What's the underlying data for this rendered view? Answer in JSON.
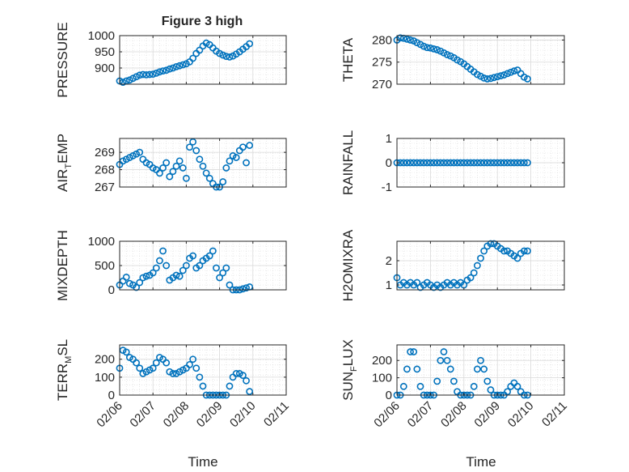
{
  "figure": {
    "title": "Figure 3 high",
    "xlabel": "Time"
  },
  "styles": {
    "marker_color": "#0072BD",
    "axis_color": "#262626",
    "grid_color": "#d9d9d9"
  },
  "chart_data": [
    {
      "id": "pressure",
      "type": "scatter",
      "ylabel": "PRESSURE",
      "ylim": [
        850,
        1000
      ],
      "yticks": [
        900,
        950,
        1000
      ],
      "xlim": [
        0,
        5
      ],
      "xticks": [
        "02/06",
        "02/07",
        "02/08",
        "02/09",
        "02/10",
        "02/11"
      ],
      "show_xticklabels": false,
      "grid": true,
      "points": [
        [
          0,
          860
        ],
        [
          0.1,
          856
        ],
        [
          0.2,
          860
        ],
        [
          0.3,
          863
        ],
        [
          0.4,
          868
        ],
        [
          0.5,
          873
        ],
        [
          0.6,
          878
        ],
        [
          0.7,
          880
        ],
        [
          0.8,
          879
        ],
        [
          0.9,
          880
        ],
        [
          1.0,
          881
        ],
        [
          1.1,
          884
        ],
        [
          1.2,
          888
        ],
        [
          1.3,
          891
        ],
        [
          1.4,
          893
        ],
        [
          1.5,
          897
        ],
        [
          1.6,
          900
        ],
        [
          1.7,
          904
        ],
        [
          1.8,
          907
        ],
        [
          1.9,
          910
        ],
        [
          2.0,
          913
        ],
        [
          2.1,
          919
        ],
        [
          2.2,
          930
        ],
        [
          2.3,
          945
        ],
        [
          2.4,
          955
        ],
        [
          2.5,
          968
        ],
        [
          2.6,
          977
        ],
        [
          2.7,
          972
        ],
        [
          2.8,
          962
        ],
        [
          2.9,
          952
        ],
        [
          3.0,
          945
        ],
        [
          3.1,
          940
        ],
        [
          3.2,
          936
        ],
        [
          3.3,
          934
        ],
        [
          3.4,
          937
        ],
        [
          3.5,
          943
        ],
        [
          3.6,
          950
        ],
        [
          3.7,
          958
        ],
        [
          3.8,
          966
        ],
        [
          3.9,
          975
        ]
      ]
    },
    {
      "id": "theta",
      "type": "scatter",
      "ylabel": "THETA",
      "ylim": [
        270,
        281
      ],
      "yticks": [
        270,
        275,
        280
      ],
      "xlim": [
        0,
        5
      ],
      "xticks": [
        "02/06",
        "02/07",
        "02/08",
        "02/09",
        "02/10",
        "02/11"
      ],
      "show_xticklabels": false,
      "grid": true,
      "points": [
        [
          0,
          280
        ],
        [
          0.1,
          280.5
        ],
        [
          0.2,
          280.4
        ],
        [
          0.3,
          280.2
        ],
        [
          0.4,
          280
        ],
        [
          0.5,
          279.8
        ],
        [
          0.6,
          279.4
        ],
        [
          0.7,
          279
        ],
        [
          0.8,
          278.6
        ],
        [
          0.9,
          278.3
        ],
        [
          1.0,
          278.2
        ],
        [
          1.1,
          278
        ],
        [
          1.2,
          277.8
        ],
        [
          1.3,
          277.5
        ],
        [
          1.4,
          277.1
        ],
        [
          1.5,
          276.7
        ],
        [
          1.6,
          276.4
        ],
        [
          1.7,
          276
        ],
        [
          1.8,
          275.5
        ],
        [
          1.9,
          275.1
        ],
        [
          2.0,
          274.6
        ],
        [
          2.1,
          274
        ],
        [
          2.2,
          273.4
        ],
        [
          2.3,
          272.8
        ],
        [
          2.4,
          272.2
        ],
        [
          2.5,
          271.8
        ],
        [
          2.6,
          271.4
        ],
        [
          2.7,
          271.2
        ],
        [
          2.8,
          271.3
        ],
        [
          2.9,
          271.5
        ],
        [
          3.0,
          271.7
        ],
        [
          3.1,
          271.9
        ],
        [
          3.2,
          272.1
        ],
        [
          3.3,
          272.4
        ],
        [
          3.4,
          272.7
        ],
        [
          3.5,
          273
        ],
        [
          3.6,
          273.2
        ],
        [
          3.7,
          272.4
        ],
        [
          3.8,
          271.6
        ],
        [
          3.9,
          271.2
        ]
      ]
    },
    {
      "id": "air_temp",
      "type": "scatter",
      "ylabel": "AIR",
      "ylabel_sub": "T",
      "ylabel_after": "EMP",
      "ylim": [
        267,
        269.8
      ],
      "yticks": [
        267,
        268,
        269
      ],
      "xlim": [
        0,
        5
      ],
      "xticks": [
        "02/06",
        "02/07",
        "02/08",
        "02/09",
        "02/10",
        "02/11"
      ],
      "show_xticklabels": false,
      "grid": true,
      "points": [
        [
          0,
          268.3
        ],
        [
          0.1,
          268.5
        ],
        [
          0.2,
          268.6
        ],
        [
          0.3,
          268.7
        ],
        [
          0.4,
          268.8
        ],
        [
          0.5,
          268.9
        ],
        [
          0.6,
          269.0
        ],
        [
          0.7,
          268.6
        ],
        [
          0.8,
          268.4
        ],
        [
          0.9,
          268.3
        ],
        [
          1.0,
          268.1
        ],
        [
          1.1,
          268.0
        ],
        [
          1.2,
          267.8
        ],
        [
          1.3,
          268.1
        ],
        [
          1.4,
          268.4
        ],
        [
          1.5,
          267.6
        ],
        [
          1.6,
          267.9
        ],
        [
          1.7,
          268.2
        ],
        [
          1.8,
          268.5
        ],
        [
          1.9,
          268.1
        ],
        [
          2.0,
          267.5
        ],
        [
          2.1,
          269.3
        ],
        [
          2.2,
          269.6
        ],
        [
          2.3,
          269.1
        ],
        [
          2.4,
          268.6
        ],
        [
          2.5,
          268.2
        ],
        [
          2.6,
          267.8
        ],
        [
          2.7,
          267.5
        ],
        [
          2.8,
          267.2
        ],
        [
          2.9,
          267.0
        ],
        [
          3.0,
          267.0
        ],
        [
          3.1,
          267.3
        ],
        [
          3.2,
          268.1
        ],
        [
          3.3,
          268.5
        ],
        [
          3.4,
          268.8
        ],
        [
          3.5,
          268.7
        ],
        [
          3.6,
          269.1
        ],
        [
          3.7,
          269.3
        ],
        [
          3.8,
          268.4
        ],
        [
          3.9,
          269.4
        ]
      ]
    },
    {
      "id": "rainfall",
      "type": "scatter",
      "ylabel": "RAINFALL",
      "ylim": [
        -1,
        1
      ],
      "yticks": [
        -1,
        0,
        1
      ],
      "xlim": [
        0,
        5
      ],
      "xticks": [
        "02/06",
        "02/07",
        "02/08",
        "02/09",
        "02/10",
        "02/11"
      ],
      "show_xticklabels": false,
      "grid": true,
      "points": [
        [
          0,
          0
        ],
        [
          0.1,
          0
        ],
        [
          0.2,
          0
        ],
        [
          0.3,
          0
        ],
        [
          0.4,
          0
        ],
        [
          0.5,
          0
        ],
        [
          0.6,
          0
        ],
        [
          0.7,
          0
        ],
        [
          0.8,
          0
        ],
        [
          0.9,
          0
        ],
        [
          1.0,
          0
        ],
        [
          1.1,
          0
        ],
        [
          1.2,
          0
        ],
        [
          1.3,
          0
        ],
        [
          1.4,
          0
        ],
        [
          1.5,
          0
        ],
        [
          1.6,
          0
        ],
        [
          1.7,
          0
        ],
        [
          1.8,
          0
        ],
        [
          1.9,
          0
        ],
        [
          2.0,
          0
        ],
        [
          2.1,
          0
        ],
        [
          2.2,
          0
        ],
        [
          2.3,
          0
        ],
        [
          2.4,
          0
        ],
        [
          2.5,
          0
        ],
        [
          2.6,
          0
        ],
        [
          2.7,
          0
        ],
        [
          2.8,
          0
        ],
        [
          2.9,
          0
        ],
        [
          3.0,
          0
        ],
        [
          3.1,
          0
        ],
        [
          3.2,
          0
        ],
        [
          3.3,
          0
        ],
        [
          3.4,
          0
        ],
        [
          3.5,
          0
        ],
        [
          3.6,
          0
        ],
        [
          3.7,
          0
        ],
        [
          3.8,
          0
        ],
        [
          3.9,
          0
        ]
      ]
    },
    {
      "id": "mixdepth",
      "type": "scatter",
      "ylabel": "MIXDEPTH",
      "ylim": [
        0,
        1000
      ],
      "yticks": [
        0,
        500,
        1000
      ],
      "xlim": [
        0,
        5
      ],
      "xticks": [
        "02/06",
        "02/07",
        "02/08",
        "02/09",
        "02/10",
        "02/11"
      ],
      "show_xticklabels": false,
      "grid": true,
      "points": [
        [
          0,
          100
        ],
        [
          0.1,
          180
        ],
        [
          0.2,
          260
        ],
        [
          0.3,
          130
        ],
        [
          0.4,
          100
        ],
        [
          0.5,
          50
        ],
        [
          0.6,
          150
        ],
        [
          0.7,
          250
        ],
        [
          0.8,
          280
        ],
        [
          0.9,
          300
        ],
        [
          1.0,
          350
        ],
        [
          1.1,
          450
        ],
        [
          1.2,
          600
        ],
        [
          1.3,
          800
        ],
        [
          1.4,
          500
        ],
        [
          1.5,
          200
        ],
        [
          1.6,
          250
        ],
        [
          1.7,
          300
        ],
        [
          1.8,
          280
        ],
        [
          1.9,
          400
        ],
        [
          2.0,
          500
        ],
        [
          2.1,
          650
        ],
        [
          2.2,
          700
        ],
        [
          2.3,
          450
        ],
        [
          2.4,
          500
        ],
        [
          2.5,
          600
        ],
        [
          2.6,
          650
        ],
        [
          2.7,
          700
        ],
        [
          2.8,
          800
        ],
        [
          2.9,
          450
        ],
        [
          3.0,
          250
        ],
        [
          3.1,
          350
        ],
        [
          3.2,
          450
        ],
        [
          3.3,
          100
        ],
        [
          3.4,
          0
        ],
        [
          3.5,
          0
        ],
        [
          3.6,
          0
        ],
        [
          3.7,
          20
        ],
        [
          3.8,
          40
        ],
        [
          3.9,
          60
        ]
      ]
    },
    {
      "id": "h2omixra",
      "type": "scatter",
      "ylabel": "H2OMIXRA",
      "ylim": [
        0.8,
        2.8
      ],
      "yticks": [
        1,
        2
      ],
      "xlim": [
        0,
        5
      ],
      "xticks": [
        "02/06",
        "02/07",
        "02/08",
        "02/09",
        "02/10",
        "02/11"
      ],
      "show_xticklabels": false,
      "grid": true,
      "points": [
        [
          0,
          1.3
        ],
        [
          0.1,
          1.0
        ],
        [
          0.2,
          1.1
        ],
        [
          0.3,
          1.0
        ],
        [
          0.4,
          1.1
        ],
        [
          0.5,
          1.0
        ],
        [
          0.6,
          1.1
        ],
        [
          0.7,
          0.9
        ],
        [
          0.8,
          1.0
        ],
        [
          0.9,
          1.1
        ],
        [
          1.0,
          1.0
        ],
        [
          1.1,
          0.9
        ],
        [
          1.2,
          1.0
        ],
        [
          1.3,
          0.9
        ],
        [
          1.4,
          1.0
        ],
        [
          1.5,
          1.1
        ],
        [
          1.6,
          1.0
        ],
        [
          1.7,
          1.1
        ],
        [
          1.8,
          1.0
        ],
        [
          1.9,
          1.1
        ],
        [
          2.0,
          1.0
        ],
        [
          2.1,
          1.2
        ],
        [
          2.2,
          1.3
        ],
        [
          2.3,
          1.5
        ],
        [
          2.4,
          1.8
        ],
        [
          2.5,
          2.1
        ],
        [
          2.6,
          2.4
        ],
        [
          2.7,
          2.6
        ],
        [
          2.8,
          2.7
        ],
        [
          2.9,
          2.7
        ],
        [
          3.0,
          2.6
        ],
        [
          3.1,
          2.5
        ],
        [
          3.2,
          2.4
        ],
        [
          3.3,
          2.4
        ],
        [
          3.4,
          2.3
        ],
        [
          3.5,
          2.2
        ],
        [
          3.6,
          2.1
        ],
        [
          3.7,
          2.3
        ],
        [
          3.8,
          2.4
        ],
        [
          3.9,
          2.4
        ]
      ]
    },
    {
      "id": "terr_msl",
      "type": "scatter",
      "ylabel": "TERR",
      "ylabel_sub": "M",
      "ylabel_after": "SL",
      "ylim": [
        0,
        280
      ],
      "yticks": [
        0,
        100,
        200
      ],
      "xlim": [
        0,
        5
      ],
      "xticks": [
        "02/06",
        "02/07",
        "02/08",
        "02/09",
        "02/10",
        "02/11"
      ],
      "show_xticklabels": true,
      "grid": true,
      "points": [
        [
          0,
          150
        ],
        [
          0.1,
          250
        ],
        [
          0.2,
          240
        ],
        [
          0.3,
          210
        ],
        [
          0.4,
          200
        ],
        [
          0.5,
          180
        ],
        [
          0.6,
          150
        ],
        [
          0.7,
          120
        ],
        [
          0.8,
          130
        ],
        [
          0.9,
          140
        ],
        [
          1.0,
          150
        ],
        [
          1.1,
          180
        ],
        [
          1.2,
          210
        ],
        [
          1.3,
          200
        ],
        [
          1.4,
          180
        ],
        [
          1.5,
          130
        ],
        [
          1.6,
          120
        ],
        [
          1.7,
          120
        ],
        [
          1.8,
          130
        ],
        [
          1.9,
          140
        ],
        [
          2.0,
          150
        ],
        [
          2.1,
          170
        ],
        [
          2.2,
          200
        ],
        [
          2.3,
          150
        ],
        [
          2.4,
          100
        ],
        [
          2.5,
          50
        ],
        [
          2.6,
          0
        ],
        [
          2.7,
          0
        ],
        [
          2.8,
          0
        ],
        [
          2.9,
          0
        ],
        [
          3.0,
          0
        ],
        [
          3.1,
          0
        ],
        [
          3.2,
          0
        ],
        [
          3.3,
          50
        ],
        [
          3.4,
          100
        ],
        [
          3.5,
          120
        ],
        [
          3.6,
          120
        ],
        [
          3.7,
          110
        ],
        [
          3.8,
          80
        ],
        [
          3.9,
          20
        ]
      ]
    },
    {
      "id": "sun_flux",
      "type": "scatter",
      "ylabel": "SUN",
      "ylabel_sub": "F",
      "ylabel_after": "LUX",
      "ylim": [
        0,
        290
      ],
      "yticks": [
        0,
        100,
        200
      ],
      "xlim": [
        0,
        5
      ],
      "xticks": [
        "02/06",
        "02/07",
        "02/08",
        "02/09",
        "02/10",
        "02/11"
      ],
      "show_xticklabels": true,
      "grid": true,
      "points": [
        [
          0,
          0
        ],
        [
          0.1,
          0
        ],
        [
          0.2,
          50
        ],
        [
          0.3,
          150
        ],
        [
          0.4,
          250
        ],
        [
          0.5,
          250
        ],
        [
          0.6,
          150
        ],
        [
          0.7,
          50
        ],
        [
          0.8,
          0
        ],
        [
          0.9,
          0
        ],
        [
          1.0,
          0
        ],
        [
          1.1,
          0
        ],
        [
          1.2,
          80
        ],
        [
          1.3,
          200
        ],
        [
          1.4,
          250
        ],
        [
          1.5,
          200
        ],
        [
          1.6,
          150
        ],
        [
          1.7,
          80
        ],
        [
          1.8,
          20
        ],
        [
          1.9,
          0
        ],
        [
          2.0,
          0
        ],
        [
          2.1,
          0
        ],
        [
          2.2,
          0
        ],
        [
          2.3,
          50
        ],
        [
          2.4,
          150
        ],
        [
          2.5,
          200
        ],
        [
          2.6,
          150
        ],
        [
          2.7,
          80
        ],
        [
          2.8,
          30
        ],
        [
          2.9,
          0
        ],
        [
          3.0,
          0
        ],
        [
          3.1,
          0
        ],
        [
          3.2,
          0
        ],
        [
          3.3,
          20
        ],
        [
          3.4,
          50
        ],
        [
          3.5,
          70
        ],
        [
          3.6,
          50
        ],
        [
          3.7,
          20
        ],
        [
          3.8,
          0
        ],
        [
          3.9,
          0
        ]
      ]
    }
  ]
}
